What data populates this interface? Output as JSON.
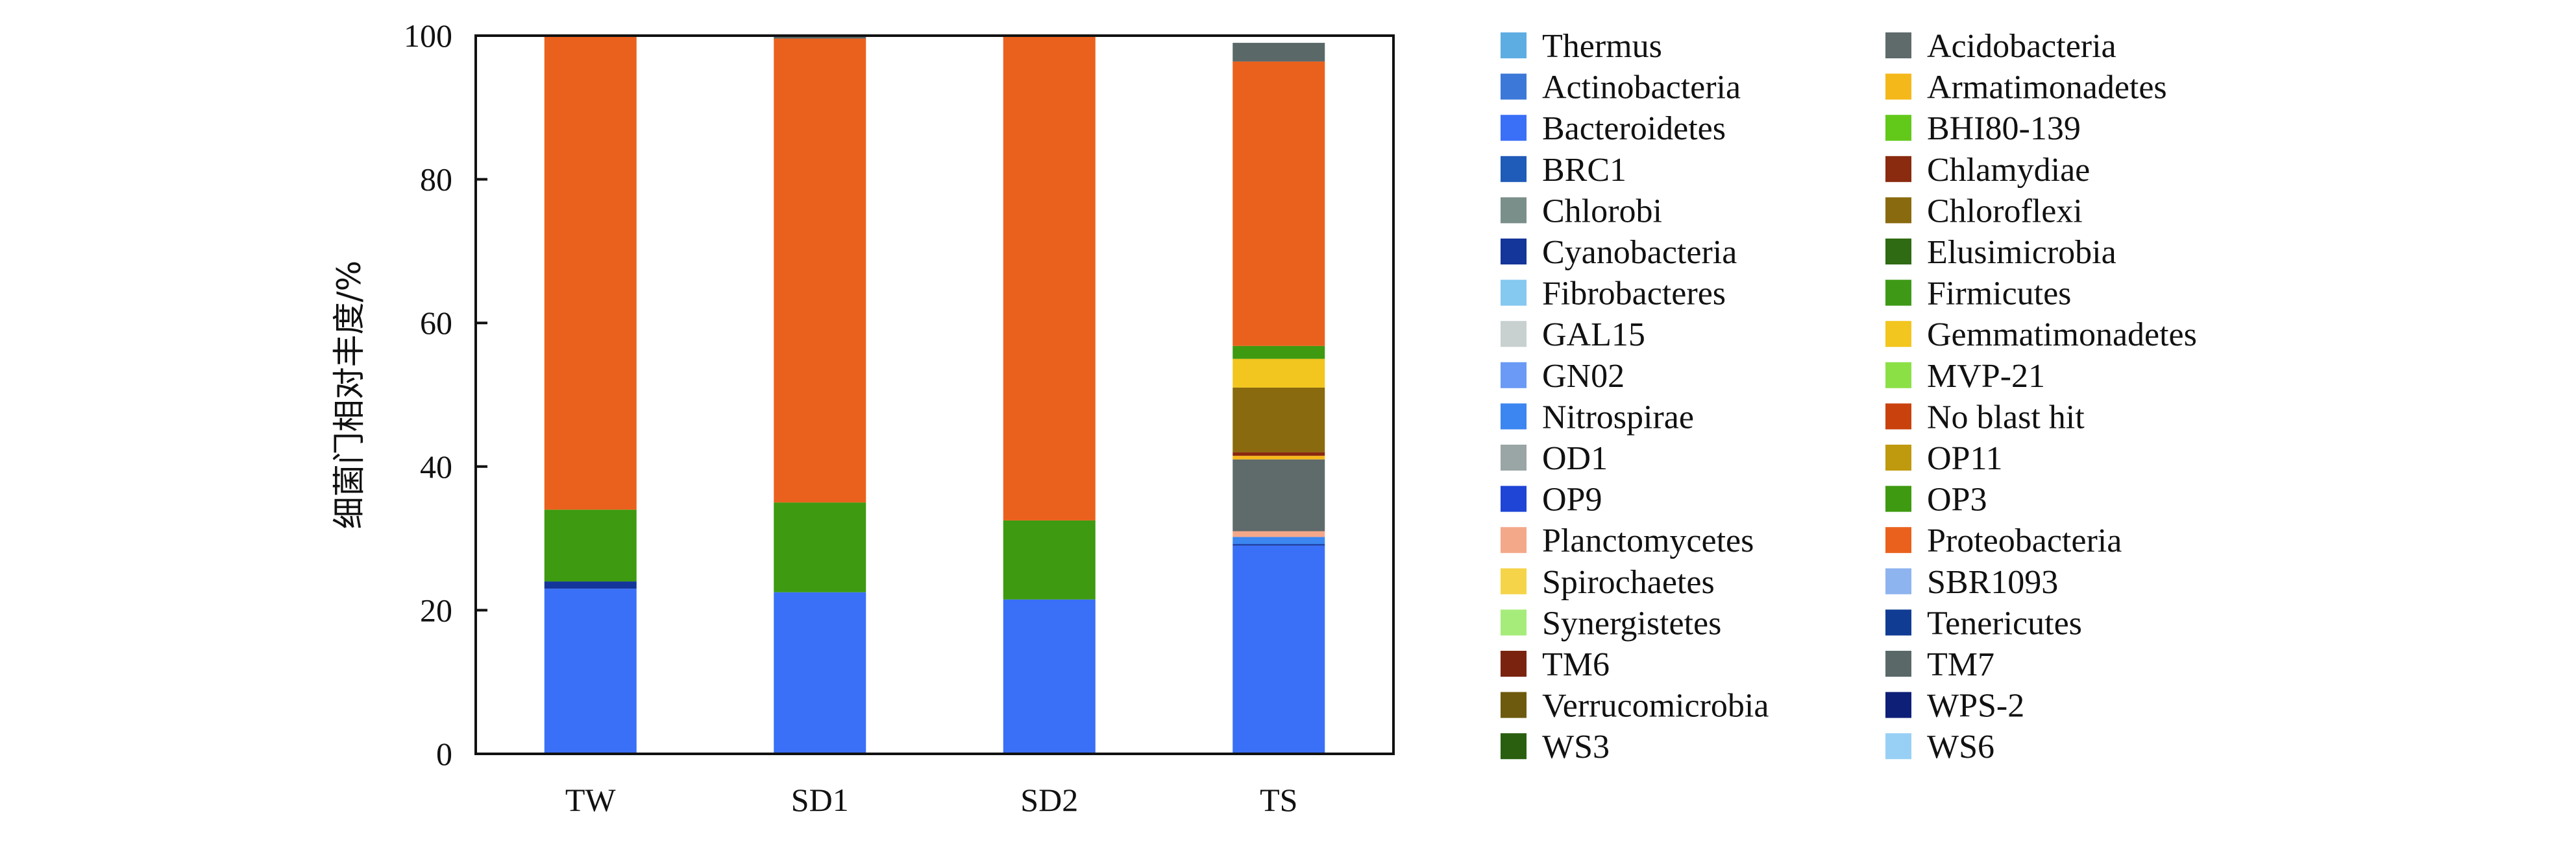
{
  "chart_data": {
    "type": "bar",
    "stacked": true,
    "categories": [
      "TW",
      "SD1",
      "SD2",
      "TS"
    ],
    "ylabel": "细菌门相对丰度/%",
    "ylim": [
      0,
      100
    ],
    "yticks": [
      0,
      20,
      40,
      60,
      80,
      100
    ],
    "grid": false,
    "legend_position": "right",
    "series": [
      {
        "name": "Thermus",
        "color": "#5dade2",
        "values": [
          0,
          0,
          0,
          0
        ]
      },
      {
        "name": "Actinobacteria",
        "color": "#3c78d8",
        "values": [
          0,
          0,
          0,
          0
        ]
      },
      {
        "name": "Bacteroidetes",
        "color": "#3a6ff7",
        "values": [
          23,
          22.5,
          21.5,
          29
        ]
      },
      {
        "name": "BRC1",
        "color": "#1f5bb8",
        "values": [
          0,
          0,
          0,
          0
        ]
      },
      {
        "name": "Chlorobi",
        "color": "#7a8f8a",
        "values": [
          0,
          0,
          0,
          0
        ]
      },
      {
        "name": "Cyanobacteria",
        "color": "#14359a",
        "values": [
          1,
          0,
          0,
          0.2
        ]
      },
      {
        "name": "Fibrobacteres",
        "color": "#85c8f0",
        "values": [
          0,
          0,
          0,
          0
        ]
      },
      {
        "name": "GAL15",
        "color": "#c8d0d0",
        "values": [
          0,
          0,
          0,
          0
        ]
      },
      {
        "name": "GN02",
        "color": "#6a9af5",
        "values": [
          0,
          0,
          0,
          0
        ]
      },
      {
        "name": "Nitrospirae",
        "color": "#3b86f0",
        "values": [
          0,
          0,
          0,
          1
        ]
      },
      {
        "name": "OD1",
        "color": "#9aa5a5",
        "values": [
          0,
          0,
          0,
          0
        ]
      },
      {
        "name": "OP9",
        "color": "#1f45d6",
        "values": [
          0,
          0,
          0,
          0
        ]
      },
      {
        "name": "Planctomycetes",
        "color": "#f4a88a",
        "values": [
          0,
          0,
          0,
          0.8
        ]
      },
      {
        "name": "Spirochaetes",
        "color": "#f5d44a",
        "values": [
          0,
          0,
          0,
          0
        ]
      },
      {
        "name": "Synergistetes",
        "color": "#a6ec7a",
        "values": [
          0,
          0,
          0,
          0
        ]
      },
      {
        "name": "TM6",
        "color": "#7a2410",
        "values": [
          0,
          0,
          0,
          0
        ]
      },
      {
        "name": "Verrucomicrobia",
        "color": "#6e5a0e",
        "values": [
          0,
          0,
          0,
          0
        ]
      },
      {
        "name": "WS3",
        "color": "#2a5f10",
        "values": [
          0,
          0,
          0,
          0
        ]
      },
      {
        "name": "Acidobacteria",
        "color": "#5f6a6a",
        "values": [
          0,
          0,
          0,
          10
        ]
      },
      {
        "name": "Armatimonadetes",
        "color": "#f5b81a",
        "values": [
          0,
          0,
          0,
          0.5
        ]
      },
      {
        "name": "BHI80-139",
        "color": "#62c91a",
        "values": [
          0,
          0,
          0,
          0
        ]
      },
      {
        "name": "Chlamydiae",
        "color": "#8a2a0e",
        "values": [
          0,
          0,
          0,
          0.5
        ]
      },
      {
        "name": "Chloroflexi",
        "color": "#8a6a0e",
        "values": [
          0,
          0,
          0,
          9
        ]
      },
      {
        "name": "Elusimicrobia",
        "color": "#2e6b12",
        "values": [
          0,
          0,
          0,
          0
        ]
      },
      {
        "name": "Firmicutes",
        "color": "#3e9a16",
        "values": [
          0,
          0,
          0,
          0
        ]
      },
      {
        "name": "Gemmatimonadetes",
        "color": "#f2c61e",
        "values": [
          0,
          0,
          0,
          4
        ]
      },
      {
        "name": "MVP-21",
        "color": "#8be046",
        "values": [
          0,
          0,
          0,
          0
        ]
      },
      {
        "name": "No blast hit",
        "color": "#c9420e",
        "values": [
          0,
          0,
          0,
          0
        ]
      },
      {
        "name": "OP11",
        "color": "#c09a0e",
        "values": [
          0,
          0,
          0,
          0
        ]
      },
      {
        "name": "OP3",
        "color": "#3e9a10",
        "values": [
          10,
          12.5,
          11,
          1.8
        ]
      },
      {
        "name": "Proteobacteria",
        "color": "#ea611d",
        "values": [
          66,
          64.6,
          67.5,
          39.6
        ]
      },
      {
        "name": "SBR1093",
        "color": "#8eb4f0",
        "values": [
          0,
          0,
          0,
          0
        ]
      },
      {
        "name": "Tenericutes",
        "color": "#103c94",
        "values": [
          0,
          0,
          0,
          0
        ]
      },
      {
        "name": "TM7",
        "color": "#5a6868",
        "values": [
          0,
          0.4,
          0,
          2.6
        ]
      },
      {
        "name": "WPS-2",
        "color": "#0e1f78",
        "values": [
          0,
          0,
          0,
          0
        ]
      },
      {
        "name": "WS6",
        "color": "#98d0f5",
        "values": [
          0,
          0,
          0,
          0
        ]
      }
    ]
  }
}
